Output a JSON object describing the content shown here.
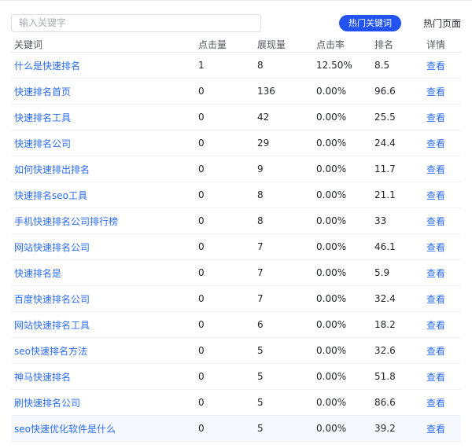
{
  "toolbar": {
    "search_placeholder": "输入关键字",
    "hot_keywords_button": "热门关键词",
    "hot_pages_tab": "热门页面"
  },
  "table": {
    "columns": [
      "关键词",
      "点击量",
      "展现量",
      "点击率",
      "排名",
      "详情"
    ],
    "view_label": "查看",
    "rows": [
      {
        "keyword": "什么是快速排名",
        "clicks": "1",
        "impressions": "8",
        "ctr": "12.50%",
        "rank": "8.5",
        "highlighted": false
      },
      {
        "keyword": "快速排名首页",
        "clicks": "0",
        "impressions": "136",
        "ctr": "0.00%",
        "rank": "96.6",
        "highlighted": false
      },
      {
        "keyword": "快速排名工具",
        "clicks": "0",
        "impressions": "42",
        "ctr": "0.00%",
        "rank": "25.5",
        "highlighted": false
      },
      {
        "keyword": "快速排名公司",
        "clicks": "0",
        "impressions": "29",
        "ctr": "0.00%",
        "rank": "24.4",
        "highlighted": false
      },
      {
        "keyword": "如何快速排出排名",
        "clicks": "0",
        "impressions": "9",
        "ctr": "0.00%",
        "rank": "11.7",
        "highlighted": false
      },
      {
        "keyword": "快速排名seo工具",
        "clicks": "0",
        "impressions": "8",
        "ctr": "0.00%",
        "rank": "21.1",
        "highlighted": false
      },
      {
        "keyword": "手机快速排名公司排行榜",
        "clicks": "0",
        "impressions": "8",
        "ctr": "0.00%",
        "rank": "33",
        "highlighted": false
      },
      {
        "keyword": "网站快速排名公司",
        "clicks": "0",
        "impressions": "7",
        "ctr": "0.00%",
        "rank": "46.1",
        "highlighted": false
      },
      {
        "keyword": "快速排名是",
        "clicks": "0",
        "impressions": "7",
        "ctr": "0.00%",
        "rank": "5.9",
        "highlighted": false
      },
      {
        "keyword": "百度快速排名公司",
        "clicks": "0",
        "impressions": "7",
        "ctr": "0.00%",
        "rank": "32.4",
        "highlighted": false
      },
      {
        "keyword": "网站快速排名工具",
        "clicks": "0",
        "impressions": "6",
        "ctr": "0.00%",
        "rank": "18.2",
        "highlighted": false
      },
      {
        "keyword": "seo快速排名方法",
        "clicks": "0",
        "impressions": "5",
        "ctr": "0.00%",
        "rank": "32.6",
        "highlighted": false
      },
      {
        "keyword": "神马快速排名",
        "clicks": "0",
        "impressions": "5",
        "ctr": "0.00%",
        "rank": "51.8",
        "highlighted": false
      },
      {
        "keyword": "刷快速排名公司",
        "clicks": "0",
        "impressions": "5",
        "ctr": "0.00%",
        "rank": "86.6",
        "highlighted": false
      },
      {
        "keyword": "seo快速优化软件是什么",
        "clicks": "0",
        "impressions": "5",
        "ctr": "0.00%",
        "rank": "39.2",
        "highlighted": true
      }
    ]
  },
  "colors": {
    "accent_blue": "#2253f0",
    "link_blue": "#2b6df2",
    "row_highlight": "#f5f8fe"
  }
}
